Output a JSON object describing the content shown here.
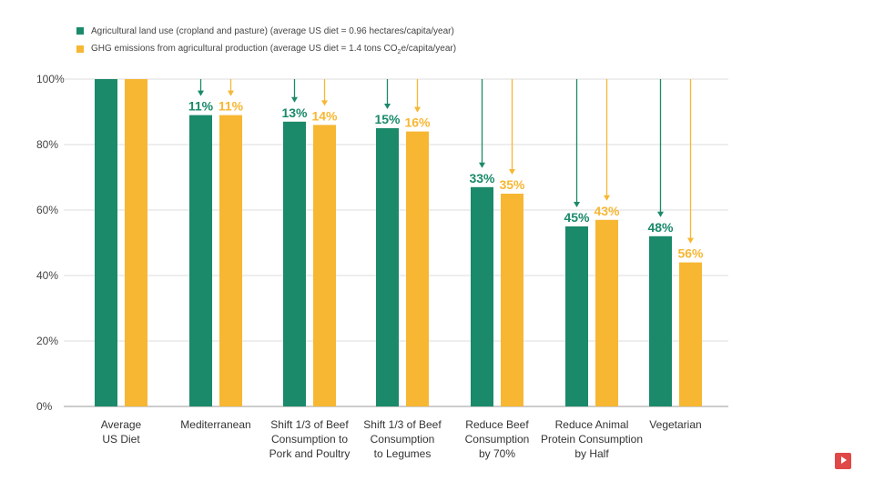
{
  "chart_data": {
    "type": "bar",
    "legend": [
      {
        "name": "Agricultural land use (cropland and pasture) (average US diet = 0.96 hectares/capita/year)",
        "color": "#1a8a6a"
      },
      {
        "name_pre": "GHG emissions from agricultural production (average US diet = 1.4 tons CO",
        "name_sub": "2",
        "name_post": "e/capita/year)",
        "color": "#f7b733"
      }
    ],
    "categories": [
      [
        "Average",
        "US Diet"
      ],
      [
        "Mediterranean"
      ],
      [
        "Shift 1/3 of Beef",
        "Consumption to",
        "Pork and Poultry"
      ],
      [
        "Shift 1/3 of Beef",
        "Consumption",
        "to Legumes"
      ],
      [
        "Reduce Beef",
        "Consumption",
        "by 70%"
      ],
      [
        "Reduce Animal",
        "Protein Consumption",
        "by Half"
      ],
      [
        "Vegetarian"
      ]
    ],
    "series": [
      {
        "values": [
          100,
          89,
          87,
          85,
          67,
          55,
          52
        ],
        "labels": [
          "",
          "11%",
          "13%",
          "15%",
          "33%",
          "45%",
          "48%"
        ],
        "color": "#1a8a6a"
      },
      {
        "values": [
          100,
          89,
          86,
          84,
          65,
          57,
          44
        ],
        "labels": [
          "",
          "11%",
          "14%",
          "16%",
          "35%",
          "43%",
          "56%"
        ],
        "color": "#f7b733"
      }
    ],
    "yticks": [
      "0%",
      "20%",
      "40%",
      "60%",
      "80%",
      "100%"
    ],
    "ylim": [
      0,
      100
    ],
    "grid": true
  }
}
